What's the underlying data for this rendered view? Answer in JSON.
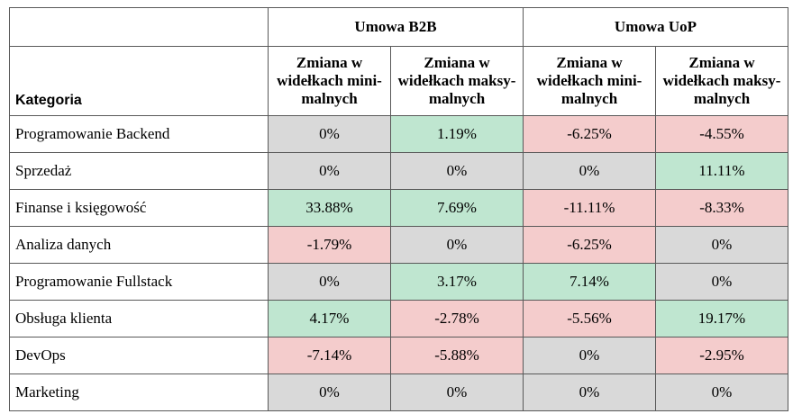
{
  "header": {
    "groups": [
      "Umowa B2B",
      "Umowa UoP"
    ],
    "category_label": "Kategoria",
    "subheaders": [
      "Zmiana w widełkach mini-malnych",
      "Zmiana w widełkach maksy-malnych",
      "Zmiana w widełkach mini-malnych",
      "Zmiana w widełkach maksy-malnych"
    ]
  },
  "rows": [
    {
      "category": "Programowanie Backend",
      "values": [
        "0%",
        "1.19%",
        "-6.25%",
        "-4.55%"
      ]
    },
    {
      "category": "Sprzedaż",
      "values": [
        "0%",
        "0%",
        "0%",
        "11.11%"
      ]
    },
    {
      "category": "Finanse i księgowość",
      "values": [
        "33.88%",
        "7.69%",
        "-11.11%",
        "-8.33%"
      ]
    },
    {
      "category": "Analiza danych",
      "values": [
        "-1.79%",
        "0%",
        "-6.25%",
        "0%"
      ]
    },
    {
      "category": "Programowanie Fullstack",
      "values": [
        "0%",
        "3.17%",
        "7.14%",
        "0%"
      ]
    },
    {
      "category": "Obsługa klienta",
      "values": [
        "4.17%",
        "-2.78%",
        "-5.56%",
        "19.17%"
      ]
    },
    {
      "category": "DevOps",
      "values": [
        "-7.14%",
        "-5.88%",
        "0%",
        "-2.95%"
      ]
    },
    {
      "category": "Marketing",
      "values": [
        "0%",
        "0%",
        "0%",
        "0%"
      ]
    }
  ],
  "colors": {
    "positive": "#bfe6d0",
    "negative": "#f4cccc",
    "neutral": "#d9d9d9"
  }
}
